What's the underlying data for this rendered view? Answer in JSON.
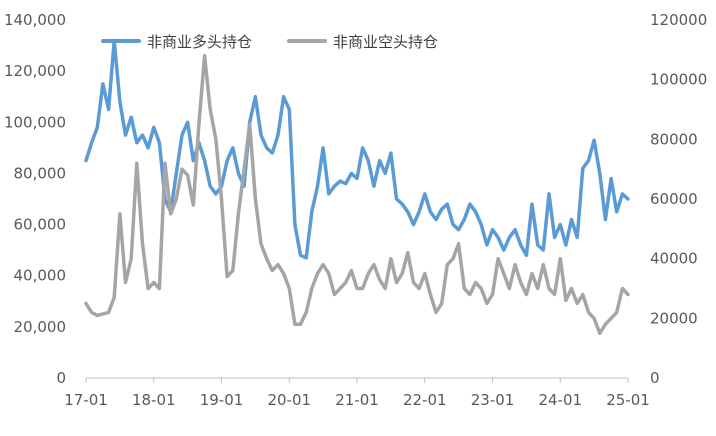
{
  "chart_data": {
    "type": "line",
    "title": "",
    "xlabel": "",
    "ylabel": "",
    "y2label": "",
    "categories_x": [
      "17-01",
      "18-01",
      "19-01",
      "20-01",
      "21-01",
      "22-01",
      "23-01",
      "24-01",
      "25-01"
    ],
    "x_range": [
      "17-01",
      "25-01"
    ],
    "ylim": [
      0,
      140000
    ],
    "y_ticks": [
      "0",
      "20,000",
      "40,000",
      "60,000",
      "80,000",
      "100,000",
      "120,000",
      "140,000"
    ],
    "y2lim": [
      0,
      120000
    ],
    "y2_ticks": [
      "0",
      "20000",
      "40000",
      "60000",
      "80000",
      "100000",
      "120000"
    ],
    "grid": false,
    "legend_position": "top",
    "series": [
      {
        "name": "非商业多头持仓",
        "axis": "left",
        "color": "#5B9BD5",
        "points": [
          [
            "17-01",
            85000
          ],
          [
            "17-02",
            92000
          ],
          [
            "17-03",
            98000
          ],
          [
            "17-04",
            115000
          ],
          [
            "17-05",
            105000
          ],
          [
            "17-06",
            132000
          ],
          [
            "17-07",
            108000
          ],
          [
            "17-08",
            95000
          ],
          [
            "17-09",
            102000
          ],
          [
            "17-10",
            92000
          ],
          [
            "17-11",
            95000
          ],
          [
            "17-12",
            90000
          ],
          [
            "18-01",
            98000
          ],
          [
            "18-02",
            92000
          ],
          [
            "18-03",
            70000
          ],
          [
            "18-04",
            65000
          ],
          [
            "18-05",
            80000
          ],
          [
            "18-06",
            95000
          ],
          [
            "18-07",
            100000
          ],
          [
            "18-08",
            85000
          ],
          [
            "18-09",
            92000
          ],
          [
            "18-10",
            85000
          ],
          [
            "18-11",
            75000
          ],
          [
            "18-12",
            72000
          ],
          [
            "19-01",
            75000
          ],
          [
            "19-02",
            85000
          ],
          [
            "19-03",
            90000
          ],
          [
            "19-04",
            80000
          ],
          [
            "19-05",
            75000
          ],
          [
            "19-06",
            100000
          ],
          [
            "19-07",
            110000
          ],
          [
            "19-08",
            95000
          ],
          [
            "19-09",
            90000
          ],
          [
            "19-10",
            88000
          ],
          [
            "19-11",
            95000
          ],
          [
            "19-12",
            110000
          ],
          [
            "20-01",
            105000
          ],
          [
            "20-02",
            60000
          ],
          [
            "20-03",
            48000
          ],
          [
            "20-04",
            47000
          ],
          [
            "20-05",
            65000
          ],
          [
            "20-06",
            75000
          ],
          [
            "20-07",
            90000
          ],
          [
            "20-08",
            72000
          ],
          [
            "20-09",
            75000
          ],
          [
            "20-10",
            77000
          ],
          [
            "20-11",
            76000
          ],
          [
            "20-12",
            80000
          ],
          [
            "21-01",
            78000
          ],
          [
            "21-02",
            90000
          ],
          [
            "21-03",
            85000
          ],
          [
            "21-04",
            75000
          ],
          [
            "21-05",
            85000
          ],
          [
            "21-06",
            80000
          ],
          [
            "21-07",
            88000
          ],
          [
            "21-08",
            70000
          ],
          [
            "21-09",
            68000
          ],
          [
            "21-10",
            65000
          ],
          [
            "21-11",
            60000
          ],
          [
            "21-12",
            65000
          ],
          [
            "22-01",
            72000
          ],
          [
            "22-02",
            65000
          ],
          [
            "22-03",
            62000
          ],
          [
            "22-04",
            66000
          ],
          [
            "22-05",
            68000
          ],
          [
            "22-06",
            60000
          ],
          [
            "22-07",
            58000
          ],
          [
            "22-08",
            62000
          ],
          [
            "22-09",
            68000
          ],
          [
            "22-10",
            65000
          ],
          [
            "22-11",
            60000
          ],
          [
            "22-12",
            52000
          ],
          [
            "23-01",
            58000
          ],
          [
            "23-02",
            55000
          ],
          [
            "23-03",
            50000
          ],
          [
            "23-04",
            55000
          ],
          [
            "23-05",
            58000
          ],
          [
            "23-06",
            52000
          ],
          [
            "23-07",
            48000
          ],
          [
            "23-08",
            68000
          ],
          [
            "23-09",
            52000
          ],
          [
            "23-10",
            50000
          ],
          [
            "23-11",
            72000
          ],
          [
            "23-12",
            55000
          ],
          [
            "24-01",
            60000
          ],
          [
            "24-02",
            52000
          ],
          [
            "24-03",
            62000
          ],
          [
            "24-04",
            55000
          ],
          [
            "24-05",
            82000
          ],
          [
            "24-06",
            85000
          ],
          [
            "24-07",
            93000
          ],
          [
            "24-08",
            80000
          ],
          [
            "24-09",
            62000
          ],
          [
            "24-10",
            78000
          ],
          [
            "24-11",
            65000
          ],
          [
            "24-12",
            72000
          ],
          [
            "25-01",
            70000
          ]
        ]
      },
      {
        "name": "非商业空头持仓",
        "axis": "right",
        "color": "#A5A5A5",
        "points": [
          [
            "17-01",
            25000
          ],
          [
            "17-02",
            22000
          ],
          [
            "17-03",
            21000
          ],
          [
            "17-04",
            21500
          ],
          [
            "17-05",
            22000
          ],
          [
            "17-06",
            27000
          ],
          [
            "17-07",
            55000
          ],
          [
            "17-08",
            32000
          ],
          [
            "17-09",
            40000
          ],
          [
            "17-10",
            72000
          ],
          [
            "17-11",
            45000
          ],
          [
            "17-12",
            30000
          ],
          [
            "18-01",
            32000
          ],
          [
            "18-02",
            30000
          ],
          [
            "18-03",
            72000
          ],
          [
            "18-04",
            55000
          ],
          [
            "18-05",
            60000
          ],
          [
            "18-06",
            70000
          ],
          [
            "18-07",
            68000
          ],
          [
            "18-08",
            58000
          ],
          [
            "18-09",
            85000
          ],
          [
            "18-10",
            108000
          ],
          [
            "18-11",
            90000
          ],
          [
            "18-12",
            80000
          ],
          [
            "19-01",
            60000
          ],
          [
            "19-02",
            34000
          ],
          [
            "19-03",
            36000
          ],
          [
            "19-04",
            55000
          ],
          [
            "19-05",
            70000
          ],
          [
            "19-06",
            85000
          ],
          [
            "19-07",
            60000
          ],
          [
            "19-08",
            45000
          ],
          [
            "19-09",
            40000
          ],
          [
            "19-10",
            36000
          ],
          [
            "19-11",
            38000
          ],
          [
            "19-12",
            35000
          ],
          [
            "20-01",
            30000
          ],
          [
            "20-02",
            18000
          ],
          [
            "20-03",
            18000
          ],
          [
            "20-04",
            22000
          ],
          [
            "20-05",
            30000
          ],
          [
            "20-06",
            35000
          ],
          [
            "20-07",
            38000
          ],
          [
            "20-08",
            35000
          ],
          [
            "20-09",
            28000
          ],
          [
            "20-10",
            30000
          ],
          [
            "20-11",
            32000
          ],
          [
            "20-12",
            36000
          ],
          [
            "21-01",
            30000
          ],
          [
            "21-02",
            30000
          ],
          [
            "21-03",
            35000
          ],
          [
            "21-04",
            38000
          ],
          [
            "21-05",
            33000
          ],
          [
            "21-06",
            30000
          ],
          [
            "21-07",
            40000
          ],
          [
            "21-08",
            32000
          ],
          [
            "21-09",
            35000
          ],
          [
            "21-10",
            42000
          ],
          [
            "21-11",
            32000
          ],
          [
            "21-12",
            30000
          ],
          [
            "22-01",
            35000
          ],
          [
            "22-02",
            28000
          ],
          [
            "22-03",
            22000
          ],
          [
            "22-04",
            25000
          ],
          [
            "22-05",
            38000
          ],
          [
            "22-06",
            40000
          ],
          [
            "22-07",
            45000
          ],
          [
            "22-08",
            30000
          ],
          [
            "22-09",
            28000
          ],
          [
            "22-10",
            32000
          ],
          [
            "22-11",
            30000
          ],
          [
            "22-12",
            25000
          ],
          [
            "23-01",
            28000
          ],
          [
            "23-02",
            40000
          ],
          [
            "23-03",
            35000
          ],
          [
            "23-04",
            30000
          ],
          [
            "23-05",
            38000
          ],
          [
            "23-06",
            32000
          ],
          [
            "23-07",
            28000
          ],
          [
            "23-08",
            35000
          ],
          [
            "23-09",
            30000
          ],
          [
            "23-10",
            38000
          ],
          [
            "23-11",
            30000
          ],
          [
            "23-12",
            28000
          ],
          [
            "24-01",
            40000
          ],
          [
            "24-02",
            26000
          ],
          [
            "24-03",
            30000
          ],
          [
            "24-04",
            25000
          ],
          [
            "24-05",
            28000
          ],
          [
            "24-06",
            22000
          ],
          [
            "24-07",
            20000
          ],
          [
            "24-08",
            15000
          ],
          [
            "24-09",
            18000
          ],
          [
            "24-10",
            20000
          ],
          [
            "24-11",
            22000
          ],
          [
            "24-12",
            30000
          ],
          [
            "25-01",
            28000
          ]
        ]
      }
    ]
  }
}
